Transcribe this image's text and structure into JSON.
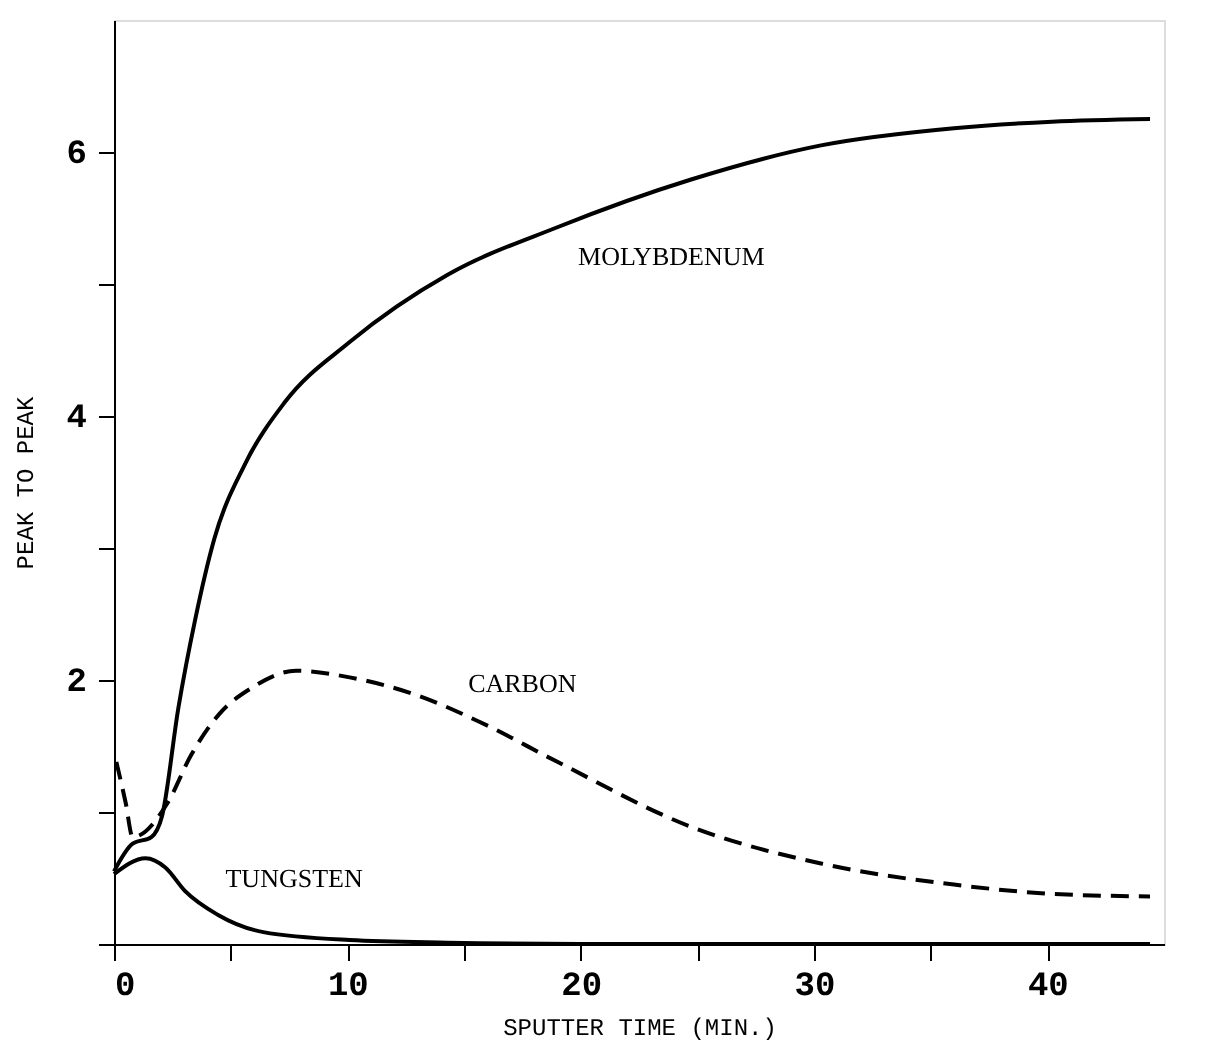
{
  "chart_data": {
    "type": "line",
    "xlabel": "SPUTTER TIME (MIN.)",
    "ylabel": "PEAK TO PEAK",
    "xlim": [
      0,
      45
    ],
    "ylim": [
      0,
      7
    ],
    "xticks": [
      0,
      {
        "value": 5,
        "label": null
      },
      10,
      {
        "value": 15,
        "label": null
      },
      20,
      {
        "value": 25,
        "label": null
      },
      30,
      {
        "value": 35,
        "label": null
      },
      40
    ],
    "yticks": [
      {
        "value": 0,
        "label": null
      },
      {
        "value": 1,
        "label": null
      },
      2,
      {
        "value": 3,
        "label": null
      },
      4,
      {
        "value": 5,
        "label": null
      },
      6
    ],
    "grid": false,
    "marker": "none",
    "series": [
      {
        "color": "#000000",
        "line_style": "solid",
        "x": [
          0,
          0.8,
          1.6,
          2.06,
          2.76,
          3.47,
          4.3,
          5.6,
          7.3,
          10.1,
          14.3,
          19,
          24.7,
          30.3,
          36,
          40.2,
          44.4
        ],
        "values": [
          0.55,
          0.76,
          0.81,
          0.97,
          1.79,
          2.45,
          3.07,
          3.63,
          4.1,
          4.56,
          5.07,
          5.43,
          5.79,
          6.05,
          6.18,
          6.23,
          6.25
        ]
      },
      {
        "color": "#000000",
        "line_style": "dashed",
        "x": [
          0.1,
          0.5,
          0.8,
          2.3,
          3.3,
          4.5,
          5.9,
          7.8,
          10.1,
          12.9,
          15.7,
          19,
          24.7,
          30.3,
          36,
          40.2,
          44.4
        ],
        "values": [
          1.38,
          1.07,
          0.81,
          1.07,
          1.43,
          1.74,
          1.94,
          2.07,
          2.02,
          1.89,
          1.68,
          1.38,
          0.89,
          0.61,
          0.45,
          0.38,
          0.36
        ]
      },
      {
        "color": "#000000",
        "line_style": "solid",
        "x": [
          0,
          1.35,
          2.2,
          3.05,
          4.46,
          6.4,
          10.1,
          14.3,
          20,
          30,
          44.4
        ],
        "values": [
          0.53,
          0.65,
          0.58,
          0.4,
          0.22,
          0.09,
          0.03,
          0.01,
          0,
          0,
          0
        ]
      }
    ],
    "annotations": [
      {
        "text": "MOLYBDENUM",
        "x": 19,
        "y": 5.43
      },
      {
        "text": "CARBON",
        "x": 15.7,
        "y": 1.68
      },
      {
        "text": "TUNGSTEN",
        "x": 4.46,
        "y": 0.22
      }
    ]
  }
}
